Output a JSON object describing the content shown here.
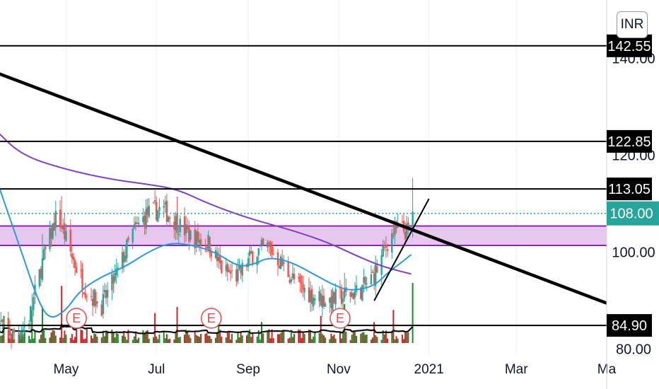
{
  "currency_label": "INR",
  "colors": {
    "up": "#26a69a",
    "down": "#ef5350",
    "vol_up": "#1b8a2a",
    "vol_down": "#c62828",
    "ma_fast": "#2a9bd8",
    "ma_slow": "#7e3fc2",
    "zone_fill": "#e6c8ef",
    "zone_edge": "#8e24aa",
    "current_price": "#26a69a"
  },
  "chart_data": {
    "type": "candlestick",
    "title": "",
    "x_axis": {
      "ticks": [
        "May",
        "Jul",
        "Sep",
        "Nov",
        "2021",
        "Mar",
        "Ma"
      ],
      "range": [
        "2020-03-15",
        "2021-05-01"
      ]
    },
    "y_axis": {
      "ticks": [
        "140.00",
        "120.00",
        "100.00",
        "80.00"
      ],
      "range": [
        72,
        152
      ]
    },
    "horizontal_levels": [
      {
        "label": "142.55",
        "value": 142.55
      },
      {
        "label": "122.85",
        "value": 122.85
      },
      {
        "label": "113.05",
        "value": 113.05
      },
      {
        "label": "84.90",
        "value": 84.9
      }
    ],
    "current_price": {
      "label": "108.00",
      "value": 108.0
    },
    "demand_zone": [
      101.4,
      105.4
    ],
    "trendlines": [
      {
        "name": "Falling trendline",
        "from": [
          "2020-03-15",
          137.0
        ],
        "to": [
          "2021-05-01",
          89.5
        ]
      },
      {
        "name": "Rising trendline",
        "from": [
          "2020-11-25",
          90.0
        ],
        "to": [
          "2021-01-01",
          111.0
        ]
      }
    ],
    "earnings_markers": [
      {
        "label": "E",
        "date": "2020-05-08"
      },
      {
        "label": "E",
        "date": "2020-08-07"
      },
      {
        "label": "E",
        "date": "2020-11-02"
      }
    ],
    "moving_averages": [
      {
        "role": "fast",
        "points": [
          [
            "2020-03-15",
            115
          ],
          [
            "2020-04-01",
            100
          ],
          [
            "2020-04-12",
            90
          ],
          [
            "2020-04-20",
            86
          ],
          [
            "2020-05-01",
            88
          ],
          [
            "2020-05-10",
            92
          ],
          [
            "2020-05-25",
            95
          ],
          [
            "2020-06-10",
            97
          ],
          [
            "2020-06-25",
            100
          ],
          [
            "2020-07-10",
            102
          ],
          [
            "2020-07-25",
            101.5
          ],
          [
            "2020-08-10",
            100
          ],
          [
            "2020-08-25",
            97
          ],
          [
            "2020-09-05",
            97.5
          ],
          [
            "2020-09-15",
            99
          ],
          [
            "2020-09-30",
            98
          ],
          [
            "2020-10-15",
            95.5
          ],
          [
            "2020-10-30",
            93
          ],
          [
            "2020-11-10",
            92
          ],
          [
            "2020-11-25",
            93
          ],
          [
            "2020-12-05",
            96
          ],
          [
            "2020-12-14",
            98
          ],
          [
            "2020-12-20",
            99.5
          ]
        ]
      },
      {
        "role": "slow",
        "points": [
          [
            "2020-03-15",
            125
          ],
          [
            "2020-04-01",
            120
          ],
          [
            "2020-05-01",
            117
          ],
          [
            "2020-06-01",
            115
          ],
          [
            "2020-06-25",
            114
          ],
          [
            "2020-07-15",
            113
          ],
          [
            "2020-08-05",
            110
          ],
          [
            "2020-09-01",
            107
          ],
          [
            "2020-10-01",
            104.5
          ],
          [
            "2020-10-25",
            102
          ],
          [
            "2020-11-15",
            99
          ],
          [
            "2020-12-01",
            97
          ],
          [
            "2020-12-20",
            95.5
          ]
        ]
      }
    ],
    "price_points": [
      [
        "2020-03-15",
        86
      ],
      [
        "2020-03-25",
        83
      ],
      [
        "2020-04-05",
        85
      ],
      [
        "2020-04-15",
        98
      ],
      [
        "2020-04-25",
        108
      ],
      [
        "2020-05-05",
        99
      ],
      [
        "2020-05-15",
        92
      ],
      [
        "2020-05-25",
        89
      ],
      [
        "2020-06-05",
        96
      ],
      [
        "2020-06-15",
        104
      ],
      [
        "2020-06-25",
        108
      ],
      [
        "2020-07-05",
        109
      ],
      [
        "2020-07-15",
        106
      ],
      [
        "2020-07-25",
        103
      ],
      [
        "2020-08-05",
        102
      ],
      [
        "2020-08-15",
        96
      ],
      [
        "2020-08-25",
        95
      ],
      [
        "2020-09-05",
        100
      ],
      [
        "2020-09-15",
        101
      ],
      [
        "2020-09-25",
        97
      ],
      [
        "2020-10-05",
        93
      ],
      [
        "2020-10-15",
        91
      ],
      [
        "2020-10-25",
        90
      ],
      [
        "2020-11-05",
        91
      ],
      [
        "2020-11-15",
        92
      ],
      [
        "2020-11-22",
        94
      ],
      [
        "2020-11-28",
        97
      ],
      [
        "2020-12-05",
        103
      ],
      [
        "2020-12-12",
        105
      ],
      [
        "2020-12-18",
        104
      ],
      [
        "2020-12-21",
        108
      ]
    ],
    "volume_spikes": [
      [
        "2020-03-20",
        0.45
      ],
      [
        "2020-04-08",
        0.55
      ],
      [
        "2020-04-15",
        0.6
      ],
      [
        "2020-04-28",
        0.95
      ],
      [
        "2020-05-08",
        0.4
      ],
      [
        "2020-06-20",
        0.55
      ],
      [
        "2020-06-30",
        0.5
      ],
      [
        "2020-07-05",
        0.7
      ],
      [
        "2020-07-15",
        0.6
      ],
      [
        "2020-08-12",
        0.45
      ],
      [
        "2020-09-10",
        0.35
      ],
      [
        "2020-10-20",
        0.45
      ],
      [
        "2020-11-05",
        0.65
      ],
      [
        "2020-11-25",
        0.35
      ],
      [
        "2020-12-08",
        0.55
      ],
      [
        "2020-12-21",
        1.0
      ]
    ]
  }
}
